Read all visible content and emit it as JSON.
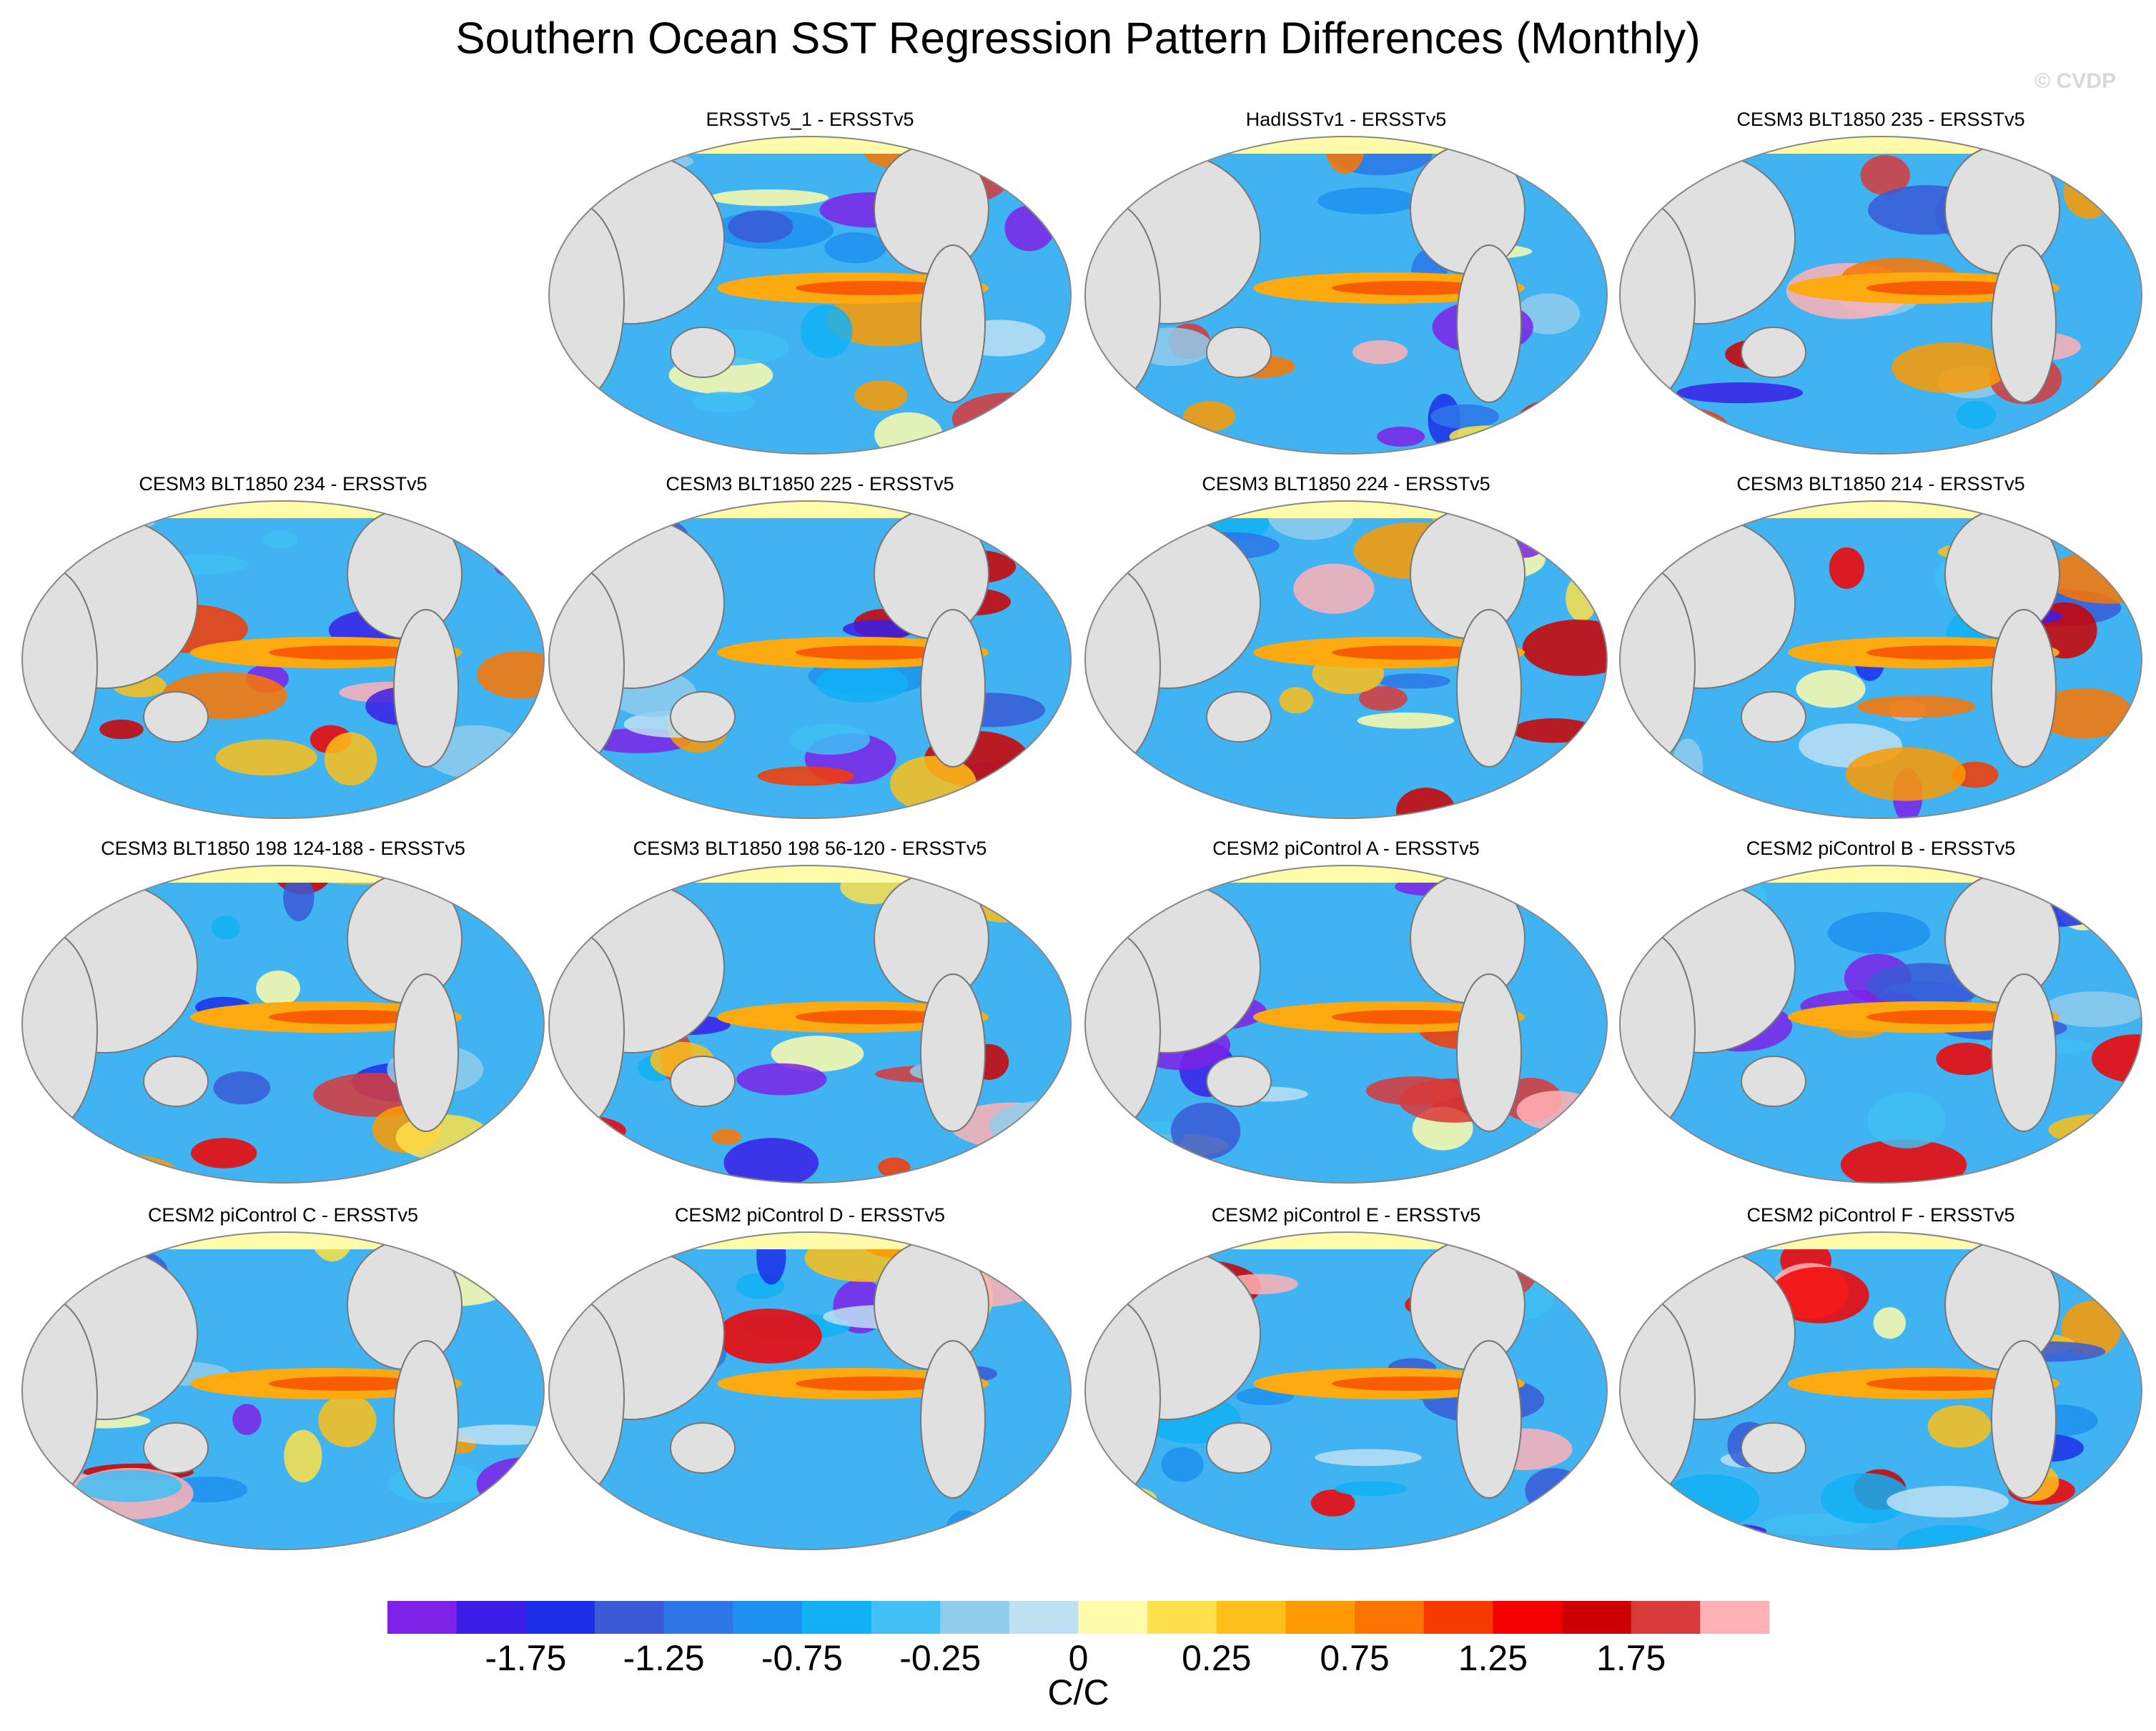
{
  "title": "Southern Ocean SST Regression Pattern Differences (Monthly)",
  "watermark": "© CVDP",
  "panels": [
    "ERSSTv5_1 - ERSSTv5",
    "HadISSTv1 - ERSSTv5",
    "CESM3 BLT1850 235 - ERSSTv5",
    "CESM3 BLT1850 234 - ERSSTv5",
    "CESM3 BLT1850 225 - ERSSTv5",
    "CESM3 BLT1850 224 - ERSSTv5",
    "CESM3 BLT1850 214 - ERSSTv5",
    "CESM3 BLT1850 198 124-188 - ERSSTv5",
    "CESM3 BLT1850 198 56-120 - ERSSTv5",
    "CESM2 piControl A - ERSSTv5",
    "CESM2 piControl B - ERSSTv5",
    "CESM2 piControl C - ERSSTv5",
    "CESM2 piControl D - ERSSTv5",
    "CESM2 piControl E - ERSSTv5",
    "CESM2 piControl F - ERSSTv5"
  ],
  "colorbar": {
    "colors": [
      "#7d22e6",
      "#3a1ee6",
      "#1d2fe8",
      "#3a5ad6",
      "#2d76e8",
      "#1e90f0",
      "#12b0f5",
      "#40c0f5",
      "#90cdec",
      "#bde0f3",
      "#fffbaa",
      "#fde04a",
      "#fdbf1a",
      "#fd9a00",
      "#fd7500",
      "#f73a00",
      "#f50000",
      "#cc0000",
      "#d83a3a",
      "#ffb2b5"
    ],
    "labels": [
      "-1.75",
      "-1.25",
      "-0.75",
      "-0.25",
      "0",
      "0.25",
      "0.75",
      "1.25",
      "1.75"
    ],
    "units": "C/C"
  }
}
